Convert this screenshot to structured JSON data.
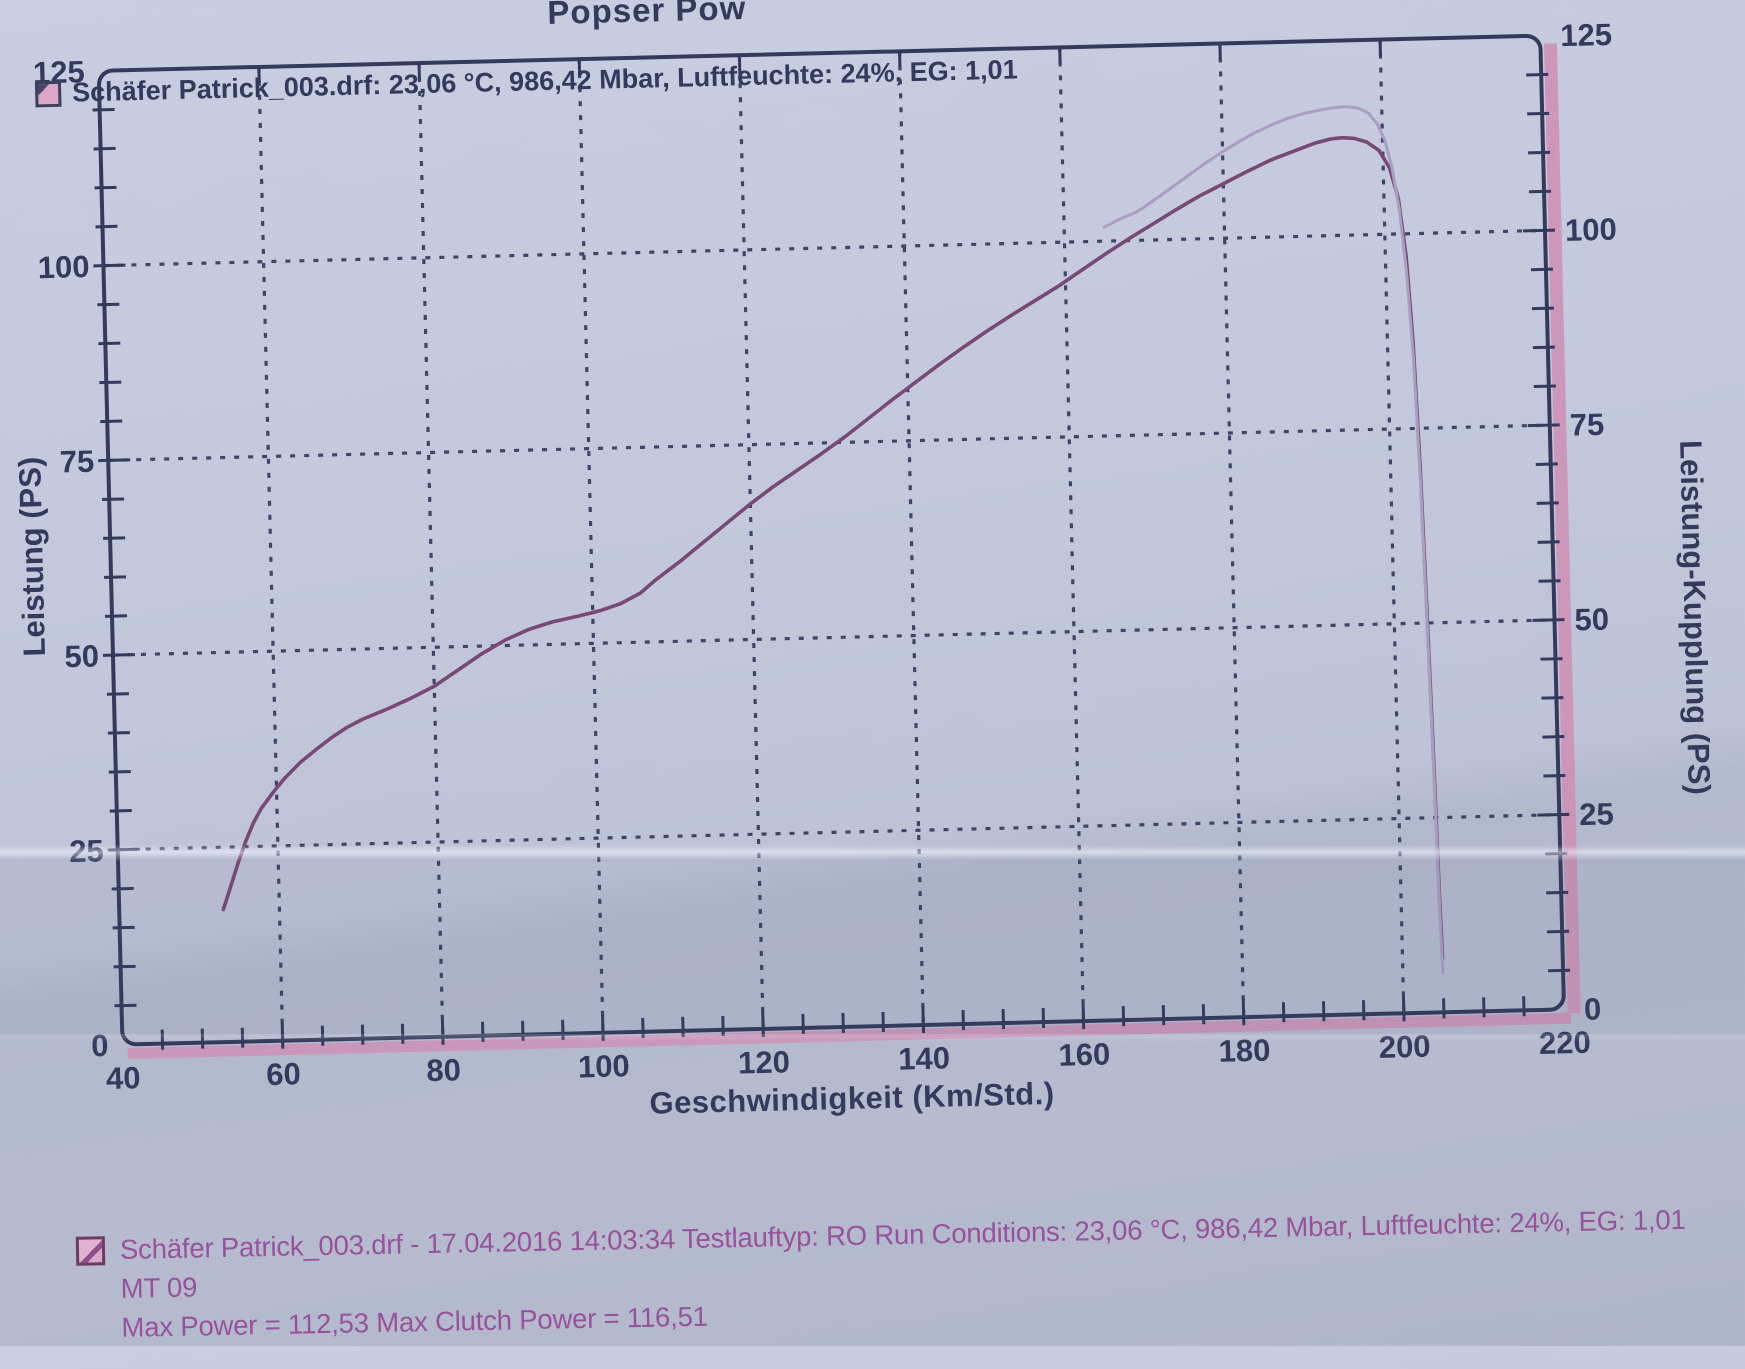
{
  "header": {
    "clipped_brand_text": "Popser Pow"
  },
  "legend": {
    "label": "Schäfer Patrick_003.drf: 23,06 °C, 986,42 Mbar, Luftfeuchte: 24%, EG: 1,01"
  },
  "footer": {
    "line1": "Schäfer Patrick_003.drf - 17.04.2016 14:03:34  Testlauftyp: RO  Run Conditions: 23,06 °C, 986,42 Mbar,  Luftfeuchte: 24%, EG: 1,01",
    "line2": "MT 09",
    "line3": "Max Power = 112,53  Max Clutch Power = 116,51"
  },
  "colors": {
    "paper": "#c2c7dc",
    "frame_and_text_navy": "#343a5c",
    "power_curve": "#7a4876",
    "clutch_curve": "#a79ec2",
    "pink_frame_band": "#cf8fb4",
    "footer_magenta": "#98519b"
  },
  "chart_data": {
    "type": "line",
    "title": "Schäfer Patrick_003.drf: 23,06 °C, 986,42 Mbar, Luftfeuchte: 24%, EG: 1,01",
    "xlabel": "Geschwindigkeit (Km/Std.)",
    "ylabel_left": "Leistung (PS)",
    "ylabel_right": "Leistung-Kupplung (PS)",
    "xlim": [
      40,
      220
    ],
    "ylim": [
      0,
      125
    ],
    "x_major_ticks": [
      40,
      60,
      80,
      100,
      120,
      140,
      160,
      180,
      200,
      220
    ],
    "x_minor_step": 5,
    "y_major_ticks": [
      0,
      25,
      50,
      75,
      100,
      125
    ],
    "y_minor_step": 5,
    "grid": "dotted gridlines at major ticks, both axes",
    "legend_position": "top-left inside plot",
    "series": [
      {
        "name": "Leistung (PS)",
        "color": "#7a4876",
        "points": [
          [
            53,
            17
          ],
          [
            53.5,
            18.5
          ],
          [
            54,
            20
          ],
          [
            55,
            23
          ],
          [
            56,
            25.7
          ],
          [
            57,
            28
          ],
          [
            58,
            29.8
          ],
          [
            59.5,
            31.8
          ],
          [
            61,
            33.6
          ],
          [
            63,
            35.6
          ],
          [
            65,
            37.2
          ],
          [
            67,
            38.7
          ],
          [
            69,
            40
          ],
          [
            71,
            41
          ],
          [
            74,
            42.2
          ],
          [
            77,
            43.5
          ],
          [
            80,
            45
          ],
          [
            83,
            47
          ],
          [
            86,
            49
          ],
          [
            89,
            50.7
          ],
          [
            92,
            52
          ],
          [
            95,
            52.9
          ],
          [
            98,
            53.5
          ],
          [
            101,
            54.2
          ],
          [
            103.5,
            55
          ],
          [
            106,
            56.3
          ],
          [
            108,
            58
          ],
          [
            111,
            60.2
          ],
          [
            114,
            62.6
          ],
          [
            117,
            65
          ],
          [
            120,
            67.4
          ],
          [
            123,
            69.6
          ],
          [
            126,
            71.6
          ],
          [
            129,
            73.6
          ],
          [
            132,
            75.7
          ],
          [
            135,
            78
          ],
          [
            138,
            80.3
          ],
          [
            141,
            82.5
          ],
          [
            144,
            84.7
          ],
          [
            147,
            86.8
          ],
          [
            150,
            88.8
          ],
          [
            153,
            90.7
          ],
          [
            156,
            92.5
          ],
          [
            159,
            94.3
          ],
          [
            162,
            96.3
          ],
          [
            165,
            98.3
          ],
          [
            168,
            100.2
          ],
          [
            171,
            102
          ],
          [
            174,
            103.8
          ],
          [
            177,
            105.5
          ],
          [
            180,
            107
          ],
          [
            183,
            108.5
          ],
          [
            186,
            109.9
          ],
          [
            189,
            111
          ],
          [
            191.5,
            111.9
          ],
          [
            193.5,
            112.4
          ],
          [
            195,
            112.53
          ],
          [
            196.5,
            112.4
          ],
          [
            198,
            111.9
          ],
          [
            199.5,
            110.8
          ],
          [
            200.8,
            108.5
          ],
          [
            201.8,
            104.5
          ],
          [
            202.6,
            97
          ],
          [
            203.2,
            86
          ],
          [
            203.7,
            70
          ],
          [
            204.1,
            52
          ],
          [
            204.5,
            32
          ],
          [
            204.8,
            15
          ],
          [
            205,
            7
          ]
        ]
      },
      {
        "name": "Leistung-Kupplung (PS)",
        "color": "#a79ec2",
        "points": [
          [
            165,
            101.8
          ],
          [
            166,
            102.3
          ],
          [
            167,
            102.8
          ],
          [
            168,
            103.2
          ],
          [
            169,
            103.6
          ],
          [
            170,
            104.2
          ],
          [
            172,
            105.6
          ],
          [
            174,
            107
          ],
          [
            176,
            108.4
          ],
          [
            178,
            109.8
          ],
          [
            180,
            111.1
          ],
          [
            182,
            112.3
          ],
          [
            184,
            113.4
          ],
          [
            186,
            114.3
          ],
          [
            188,
            115.1
          ],
          [
            190,
            115.7
          ],
          [
            192,
            116.1
          ],
          [
            194,
            116.4
          ],
          [
            195.5,
            116.51
          ],
          [
            197,
            116.3
          ],
          [
            198.3,
            115.6
          ],
          [
            199.4,
            114.2
          ],
          [
            200.3,
            112
          ],
          [
            201.1,
            108.5
          ],
          [
            201.9,
            103
          ],
          [
            202.6,
            95
          ],
          [
            203.2,
            84
          ],
          [
            203.7,
            68
          ],
          [
            204.1,
            50
          ],
          [
            204.5,
            30
          ],
          [
            204.8,
            13
          ],
          [
            205,
            5
          ]
        ]
      }
    ],
    "annotations": {
      "max_power": 112.53,
      "max_clutch_power": 116.51
    }
  }
}
